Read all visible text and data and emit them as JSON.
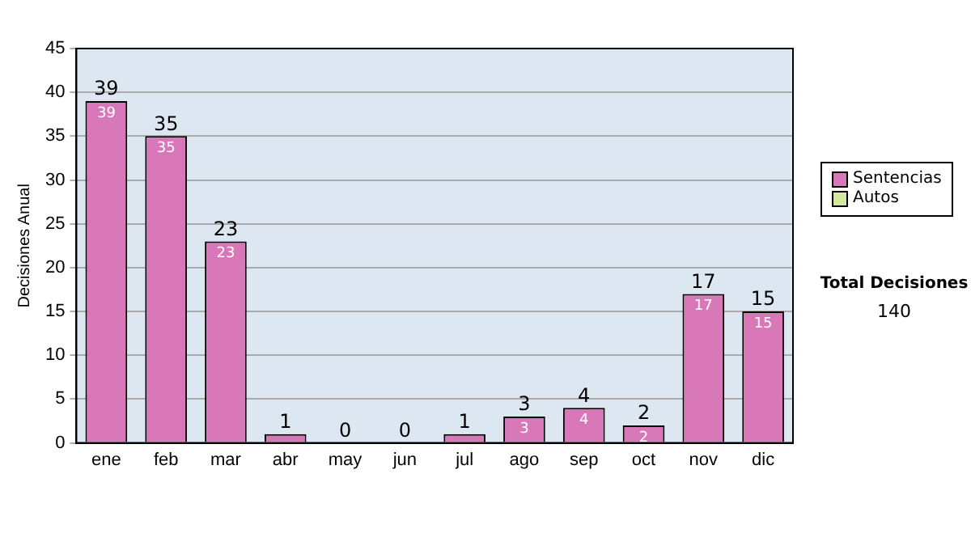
{
  "chart_data": {
    "type": "bar",
    "stacked": true,
    "ylabel": "Decisiones Anual",
    "categories": [
      "ene",
      "feb",
      "mar",
      "abr",
      "may",
      "jun",
      "jul",
      "ago",
      "sep",
      "oct",
      "nov",
      "dic"
    ],
    "series": [
      {
        "name": "Sentencias",
        "color": "#d878b8",
        "values": [
          39,
          35,
          23,
          1,
          0,
          0,
          1,
          3,
          4,
          2,
          17,
          15
        ],
        "value_labels": [
          "39",
          "35",
          "23",
          null,
          null,
          null,
          null,
          "3",
          "4",
          "2",
          "17",
          "15"
        ]
      },
      {
        "name": "Autos",
        "color": "#d4e8a0",
        "values": [
          0,
          0,
          0,
          0,
          0,
          0,
          0,
          0,
          0,
          0,
          0,
          0
        ]
      }
    ],
    "totals": [
      "39",
      "35",
      "23",
      "1",
      "0",
      "0",
      "1",
      "3",
      "4",
      "2",
      "17",
      "15"
    ],
    "ylim": [
      0,
      45
    ],
    "yticks": [
      0,
      5,
      10,
      15,
      20,
      25,
      30,
      35,
      40,
      45
    ],
    "grid": "y",
    "legend": "right",
    "annotations": [
      "Total Decisiones",
      "140"
    ]
  }
}
